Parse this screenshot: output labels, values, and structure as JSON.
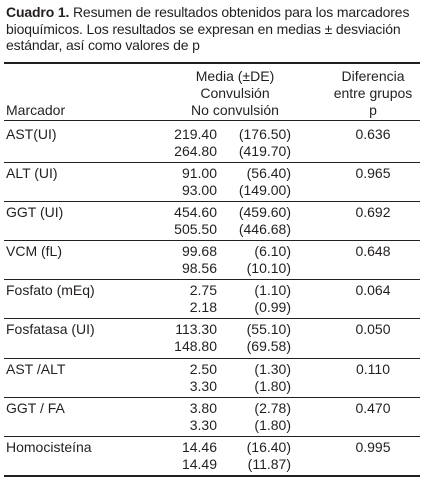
{
  "caption": {
    "label": "Cuadro 1.",
    "text": "Resumen de resultados obtenidos para los marcadores bioquímicos. Los resultados se expresan en medias ± desviación estándar, así como valores de p"
  },
  "table": {
    "headers": {
      "marker": "Marcador",
      "media_lines": [
        "Media (±DE)",
        "Convulsión",
        "No convulsión"
      ],
      "diff_lines": [
        "Diferencia",
        "entre grupos",
        "p"
      ]
    },
    "rows": [
      {
        "marker": "AST(UI)",
        "v1": "219.40",
        "s1": "(176.50)",
        "v2": "264.80",
        "s2": "(419.70)",
        "p": "0.636"
      },
      {
        "marker": "ALT (UI)",
        "v1": "91.00",
        "s1": "(56.40)",
        "v2": "93.00",
        "s2": "(149.00)",
        "p": "0.965"
      },
      {
        "marker": "GGT (UI)",
        "v1": "454.60",
        "s1": "(459.60)",
        "v2": "505.50",
        "s2": "(446.68)",
        "p": "0.692"
      },
      {
        "marker": "VCM (fL)",
        "v1": "99.68",
        "s1": "(6.10)",
        "v2": "98.56",
        "s2": "(10.10)",
        "p": "0.648"
      },
      {
        "marker": "Fosfato (mEq)",
        "v1": "2.75",
        "s1": "(1.10)",
        "v2": "2.18",
        "s2": "(0.99)",
        "p": "0.064"
      },
      {
        "marker": "Fosfatasa (UI)",
        "v1": "113.30",
        "s1": "(55.10)",
        "v2": "148.80",
        "s2": "(69.58)",
        "p": "0.050"
      },
      {
        "marker": "AST /ALT",
        "v1": "2.50",
        "s1": "(1.30)",
        "v2": "3.30",
        "s2": "(1.80)",
        "p": "0.110"
      },
      {
        "marker": "GGT / FA",
        "v1": "3.80",
        "s1": "(2.78)",
        "v2": "3.30",
        "s2": "(1.80)",
        "p": "0.470"
      },
      {
        "marker": "Homocisteína",
        "v1": "14.46",
        "s1": "(16.40)",
        "v2": "14.49",
        "s2": "(11.87)",
        "p": "0.995"
      }
    ]
  }
}
